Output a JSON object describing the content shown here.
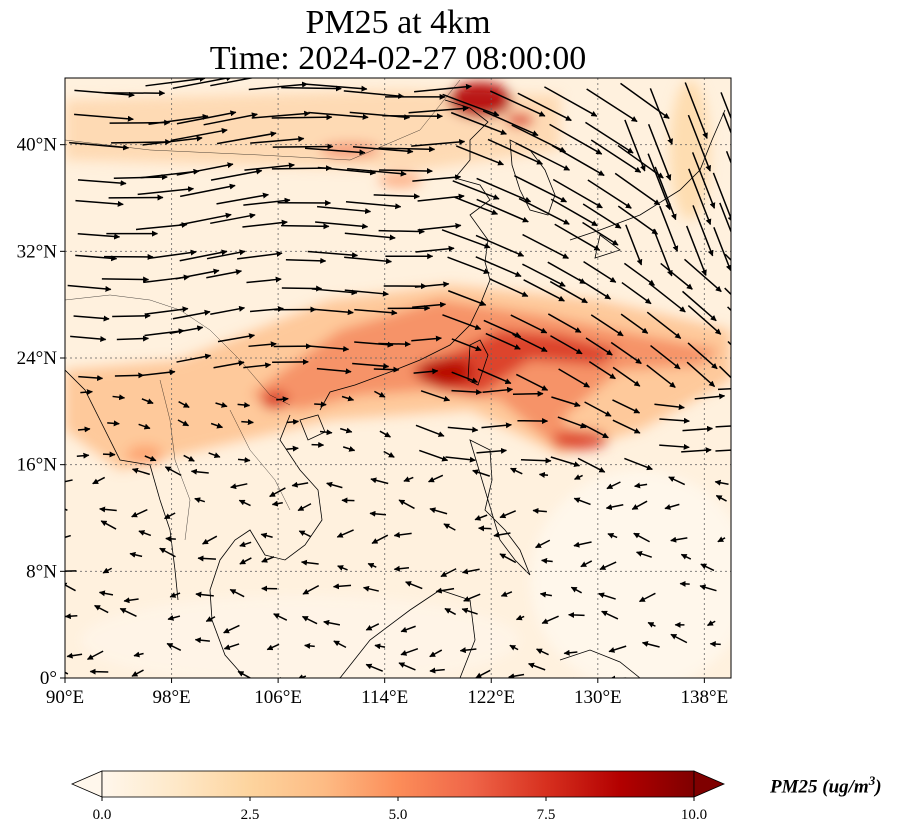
{
  "title": {
    "line1": "PM25 at 4km",
    "line2": "Time: 2024-02-27 08:00:00"
  },
  "map": {
    "extent": {
      "lon_min": 90,
      "lon_max": 140,
      "lat_min": 0,
      "lat_max": 45
    },
    "lon_ticks": [
      {
        "value": 90,
        "label": "90°E"
      },
      {
        "value": 98,
        "label": "98°E"
      },
      {
        "value": 106,
        "label": "106°E"
      },
      {
        "value": 114,
        "label": "114°E"
      },
      {
        "value": 122,
        "label": "122°E"
      },
      {
        "value": 130,
        "label": "130°E"
      },
      {
        "value": 138,
        "label": "138°E"
      }
    ],
    "lat_ticks": [
      {
        "value": 0,
        "label": "0°"
      },
      {
        "value": 8,
        "label": "8°N"
      },
      {
        "value": 16,
        "label": "16°N"
      },
      {
        "value": 24,
        "label": "24°N"
      },
      {
        "value": 32,
        "label": "32°N"
      },
      {
        "value": 40,
        "label": "40°N"
      }
    ],
    "gridlines": true,
    "wind_vectors": "black arrows",
    "pollution_bands": [
      {
        "lon": [
          107,
          140
        ],
        "lat": [
          18,
          29
        ],
        "note": "southern China coast to Taiwan and east"
      },
      {
        "lon": [
          108,
          123
        ],
        "lat": [
          37,
          45
        ],
        "note": "northern China / Bohai"
      }
    ]
  },
  "colorbar": {
    "min": 0.0,
    "max": 10.0,
    "ticks": [
      "0.0",
      "2.5",
      "5.0",
      "7.5",
      "10.0"
    ],
    "colormap": "OrRd",
    "colors": [
      "#fff7ec",
      "#fee8c8",
      "#fdd49e",
      "#fdbb84",
      "#fc8d59",
      "#ef6548",
      "#d7301f",
      "#b30000",
      "#7f0000"
    ],
    "label": "PM25 (ug/m",
    "label_exponent": "3",
    "label_close": ")"
  }
}
